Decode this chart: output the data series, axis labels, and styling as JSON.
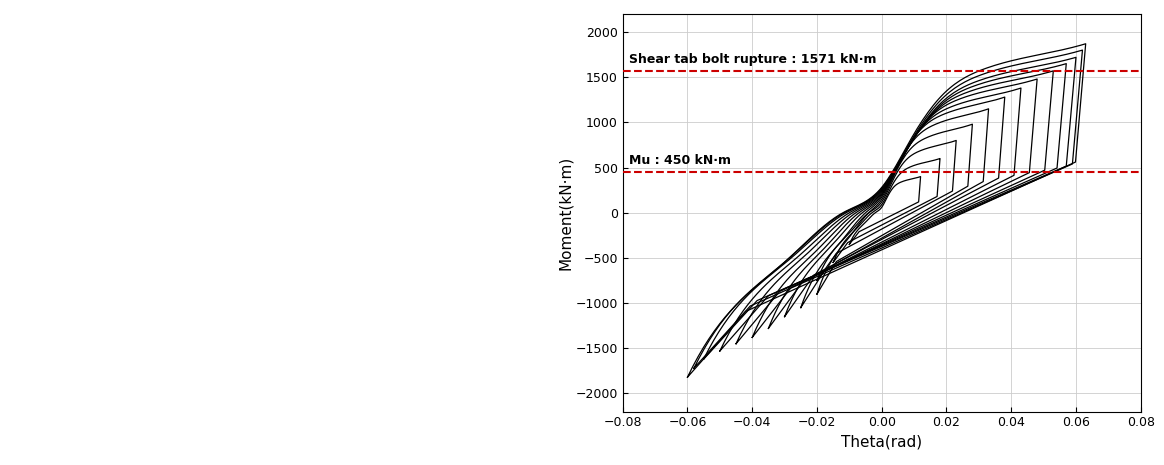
{
  "xlim": [
    -0.08,
    0.08
  ],
  "ylim": [
    -2200,
    2200
  ],
  "yticks": [
    -2000,
    -1500,
    -1000,
    -500,
    0,
    500,
    1000,
    1500,
    2000
  ],
  "xticks": [
    -0.08,
    -0.06,
    -0.04,
    -0.02,
    0.0,
    0.02,
    0.04,
    0.06,
    0.08
  ],
  "xlabel": "Theta(rad)",
  "ylabel": "Moment(kN·m)",
  "hline1_y": 1571,
  "hline2_y": 450,
  "hline1_label": "Shear tab bolt rupture : 1571 kN·m",
  "hline2_label": "Mu : 450 kN·m",
  "hline_color": "#cc0000",
  "curve_color": "#000000",
  "bg_color": "#ffffff",
  "grid_color": "#cccccc",
  "figsize": [
    11.64,
    4.65
  ],
  "dpi": 100
}
